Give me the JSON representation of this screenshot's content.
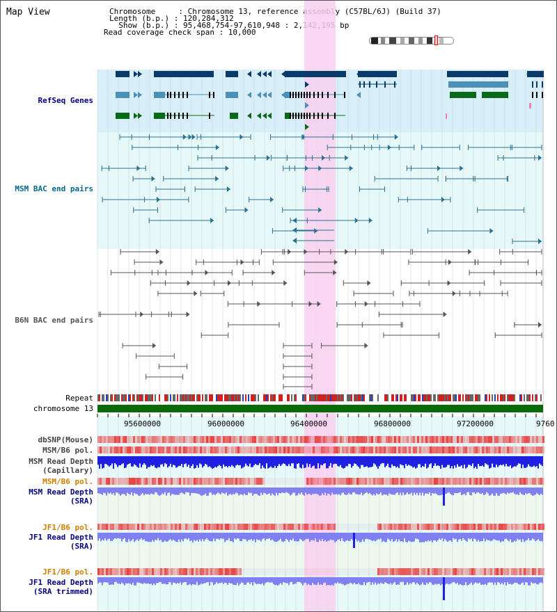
{
  "header": {
    "title": "Map View",
    "chromosome_line": "Chromosome     : Chromosome 13, reference assembly (C57BL/6J) (Build 37)",
    "length_line": "Length (b.p.) : 120,284,312",
    "show_line": "  Show (b.p.) : 95,468,754-97,610,948 : 2,142,195 bp",
    "coverage_line": "Read coverage check span : 10,000"
  },
  "tracks": {
    "refseq": "RefSeq Genes",
    "msm_bac": "MSM BAC end pairs",
    "b6n_bac": "B6N BAC end pairs",
    "repeat": "Repeat",
    "chromosome": "chromosome 13",
    "dbsnp": "dbSNP(Mouse)",
    "msm_pol_1": "MSM/B6 pol.",
    "msm_depth_cap_1": "MSM Read Depth",
    "msm_depth_cap_2": "(Capillary)",
    "msm_pol_2": "MSM/B6 pol.",
    "msm_depth_sra_1": "MSM Read Depth",
    "msm_depth_sra_2": "(SRA)",
    "jf1_pol_1": "JF1/B6 pol.",
    "jf1_depth_sra_1": "JF1 Read Depth",
    "jf1_depth_sra_2": "(SRA)",
    "jf1_pol_2": "JF1/B6 pol.",
    "jf1_depth_trim_1": "JF1 Read Depth",
    "jf1_depth_trim_2": "(SRA trimmed)"
  },
  "axis": {
    "ticks": [
      "95600000",
      "96000000",
      "96400000",
      "96800000",
      "97200000",
      "9760"
    ]
  },
  "colors": {
    "refseq_bg": "#d8eef8",
    "bac_bg": "#e6f8f8",
    "highlight": "#f8d0f0",
    "gene_dark": "#0a3a6a",
    "gene_mid": "#4a90b8",
    "gene_green": "#0a6a1a",
    "msm_pair": "#2a7090",
    "b6n_pair": "#555555",
    "chrom_green": "#0a6a0a",
    "snp_red": "#e84040",
    "depth_blue": "#2020e0",
    "depth_sra": "#8080f0",
    "label_blue": "#000080",
    "label_teal": "#006a8a",
    "label_orange": "#d08000"
  }
}
